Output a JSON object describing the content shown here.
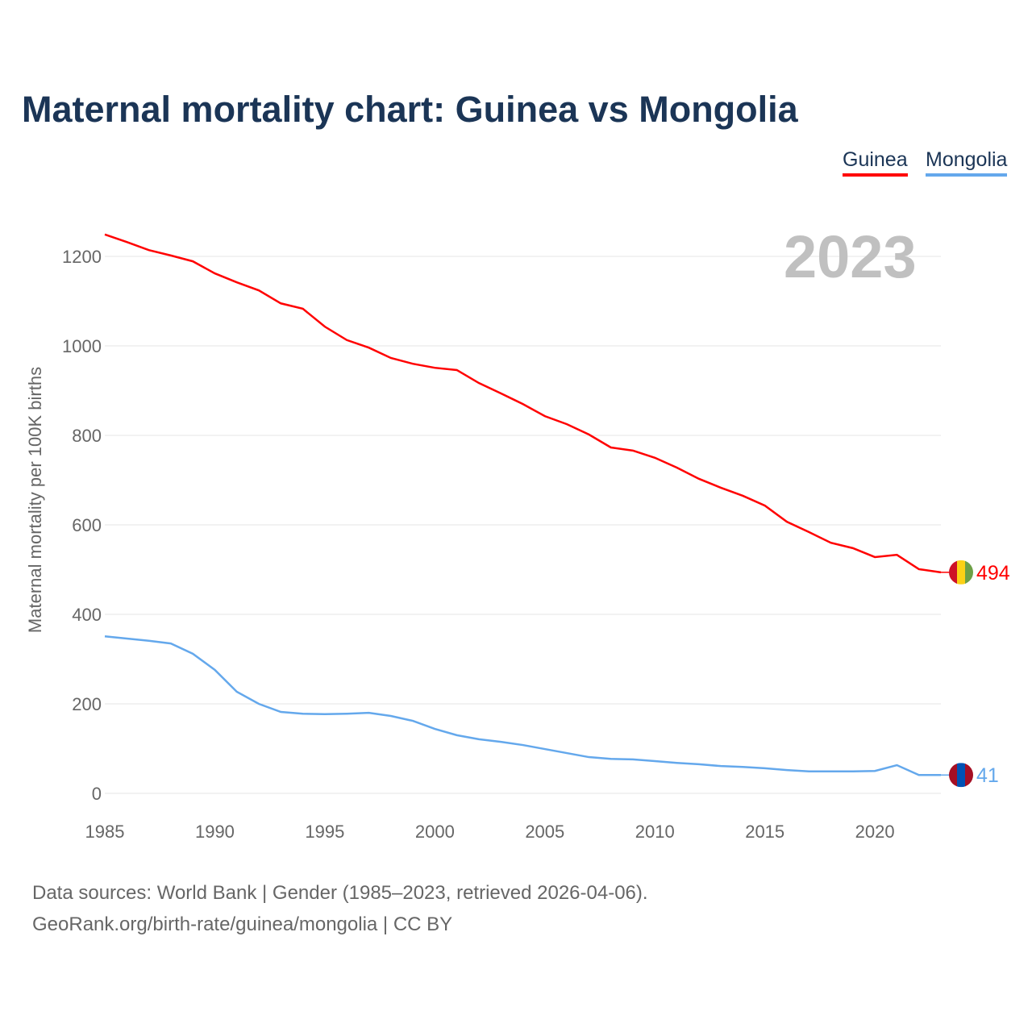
{
  "chart_data": {
    "type": "line",
    "title": "Maternal mortality chart: Guinea vs Mongolia",
    "ylabel": "Maternal mortality per 100K births",
    "xlabel": "",
    "year_label": "2023",
    "xlim": [
      1985,
      2023
    ],
    "ylim": [
      0,
      1300
    ],
    "xticks": [
      1985,
      1990,
      1995,
      2000,
      2005,
      2010,
      2015,
      2020
    ],
    "yticks": [
      0,
      200,
      400,
      600,
      800,
      1000,
      1200
    ],
    "grid": true,
    "legend": "top-right",
    "x": [
      1985,
      1986,
      1987,
      1988,
      1989,
      1990,
      1991,
      1992,
      1993,
      1994,
      1995,
      1996,
      1997,
      1998,
      1999,
      2000,
      2001,
      2002,
      2003,
      2004,
      2005,
      2006,
      2007,
      2008,
      2009,
      2010,
      2011,
      2012,
      2013,
      2014,
      2015,
      2016,
      2017,
      2018,
      2019,
      2020,
      2021,
      2022,
      2023
    ],
    "series": [
      {
        "name": "Guinea",
        "color": "#ff0000",
        "end_label": "494",
        "values": [
          1249,
          1232,
          1214,
          1202,
          1189,
          1162,
          1142,
          1124,
          1095,
          1083,
          1043,
          1013,
          996,
          973,
          960,
          951,
          946,
          917,
          894,
          870,
          843,
          825,
          802,
          773,
          766,
          750,
          728,
          703,
          683,
          665,
          643,
          607,
          584,
          560,
          548,
          528,
          533,
          501,
          494
        ]
      },
      {
        "name": "Mongolia",
        "color": "#64a8ec",
        "end_label": "41",
        "values": [
          351,
          346,
          341,
          335,
          312,
          276,
          227,
          200,
          182,
          178,
          177,
          178,
          180,
          173,
          162,
          144,
          130,
          121,
          115,
          108,
          99,
          90,
          81,
          77,
          76,
          72,
          68,
          65,
          61,
          59,
          56,
          52,
          49,
          49,
          49,
          50,
          63,
          41,
          41
        ]
      }
    ]
  },
  "source": {
    "line1": "Data sources: World Bank | Gender (1985–2023, retrieved 2026-04-06).",
    "line2": "GeoRank.org/birth-rate/guinea/mongolia | CC BY"
  }
}
